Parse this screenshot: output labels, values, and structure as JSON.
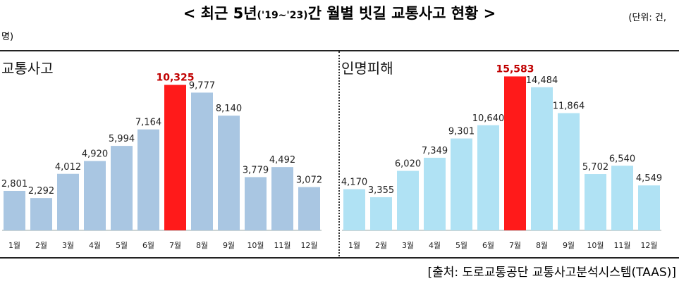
{
  "title": {
    "pre": "< 최근 5년",
    "range": "('19~'23)",
    "post": "간 월별 빗길 교통사고 현황 >"
  },
  "unit": {
    "line1": "(단위: 건,",
    "line2": "명)"
  },
  "source": "[출처: 도로교통공단 교통사고분석시스템(TAAS)]",
  "colors": {
    "left_bar": "#a9c6e2",
    "right_bar": "#b0e2f4",
    "highlight": "#ff1a1a",
    "highlight_label": "#c00000"
  },
  "chart_data": [
    {
      "type": "bar",
      "title": "교통사고",
      "categories": [
        "1월",
        "2월",
        "3월",
        "4월",
        "5월",
        "6월",
        "7월",
        "8월",
        "9월",
        "10월",
        "11월",
        "12월"
      ],
      "values": [
        2801,
        2292,
        4012,
        4920,
        5994,
        7164,
        10325,
        9777,
        8140,
        3779,
        4492,
        3072
      ],
      "labels": [
        "2,801",
        "2,292",
        "4,012",
        "4,920",
        "5,994",
        "7,164",
        "10,325",
        "9,777",
        "8,140",
        "3,779",
        "4,492",
        "3,072"
      ],
      "highlight_index": 6,
      "ylim": [
        0,
        11500
      ]
    },
    {
      "type": "bar",
      "title": "인명피해",
      "categories": [
        "1월",
        "2월",
        "3월",
        "4월",
        "5월",
        "6월",
        "7월",
        "8월",
        "9월",
        "10월",
        "11월",
        "12월"
      ],
      "values": [
        4170,
        3355,
        6020,
        7349,
        9301,
        10640,
        15583,
        14484,
        11864,
        5702,
        6540,
        4549
      ],
      "labels": [
        "4,170",
        "3,355",
        "6,020",
        "7,349",
        "9,301",
        "10,640",
        "15,583",
        "14,484",
        "11,864",
        "5,702",
        "6,540",
        "4,549"
      ],
      "highlight_index": 6,
      "ylim": [
        0,
        16400
      ]
    }
  ]
}
